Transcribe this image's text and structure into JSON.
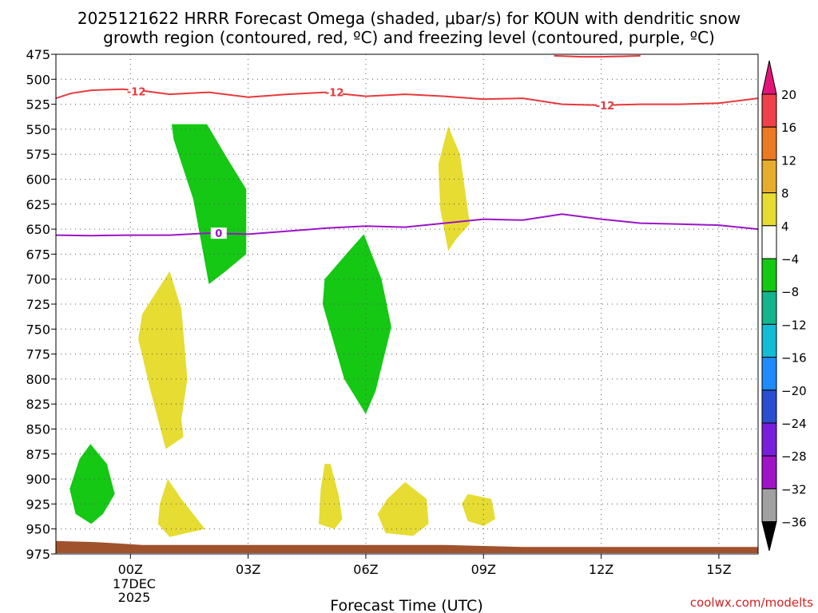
{
  "title_line1": "2025121622 HRRR Forecast Omega (shaded, μbar/s) for KOUN with dendritic snow",
  "title_line2": "growth region (contoured, red, ºC) and freezing level (contoured, purple, ºC)",
  "xlabel": "Forecast Time (UTC)",
  "watermark": "coolwx.com/modelts",
  "date_label_1": "17DEC",
  "date_label_2": "2025",
  "chart_data": {
    "type": "time-height contour",
    "x_range_hours": [
      -1.9,
      16.0
    ],
    "y_range_hPa": [
      475,
      975
    ],
    "x_ticks": [
      {
        "hour": 0,
        "label": "00Z"
      },
      {
        "hour": 3,
        "label": "03Z"
      },
      {
        "hour": 6,
        "label": "06Z"
      },
      {
        "hour": 9,
        "label": "09Z"
      },
      {
        "hour": 12,
        "label": "12Z"
      },
      {
        "hour": 15,
        "label": "15Z"
      }
    ],
    "y_ticks": [
      475,
      500,
      525,
      550,
      575,
      600,
      625,
      650,
      675,
      700,
      725,
      750,
      775,
      800,
      825,
      850,
      875,
      900,
      925,
      950,
      975
    ],
    "colorbar": {
      "labels": [
        "20",
        "16",
        "12",
        "8",
        "4",
        "−4",
        "−8",
        "−12",
        "−16",
        "−20",
        "−24",
        "−28",
        "−32",
        "−36"
      ],
      "bins": [
        {
          "range": "16 to 20",
          "color": "#f0404a"
        },
        {
          "range": "12 to 16",
          "color": "#ec7a22"
        },
        {
          "range": "8 to 12",
          "color": "#e6ac2e"
        },
        {
          "range": "4 to 8",
          "color": "#e6dc32"
        },
        {
          "range": "-4 to 4",
          "color": "#ffffff"
        },
        {
          "range": "-8 to -4",
          "color": "#14c814"
        },
        {
          "range": "-12 to -8",
          "color": "#14b48c"
        },
        {
          "range": "-16 to -12",
          "color": "#12bcd4"
        },
        {
          "range": "-20 to -16",
          "color": "#1e8cff"
        },
        {
          "range": "-24 to -20",
          "color": "#2a4ed2"
        },
        {
          "range": "-28 to -24",
          "color": "#7a1ede"
        },
        {
          "range": "-32 to -28",
          "color": "#a014c8"
        },
        {
          "range": "-36 to -32",
          "color": "#a0a0a0"
        }
      ],
      "top_color": "#e2147a",
      "bottom_color": "#000000"
    },
    "contours": [
      {
        "name": "dendritic-snow -12C",
        "label": "-12",
        "color": "#e8383c",
        "points": [
          [
            -1.9,
            519
          ],
          [
            -1.5,
            514
          ],
          [
            -1.0,
            511
          ],
          [
            -0.2,
            510
          ],
          [
            0.4,
            512
          ],
          [
            1.0,
            515
          ],
          [
            2.0,
            513
          ],
          [
            3.0,
            518
          ],
          [
            4.0,
            515
          ],
          [
            5.0,
            513
          ],
          [
            6.0,
            517
          ],
          [
            7.0,
            515
          ],
          [
            8.0,
            517
          ],
          [
            9.0,
            520
          ],
          [
            10.0,
            519
          ],
          [
            11.0,
            525
          ],
          [
            12.0,
            526
          ],
          [
            13.0,
            525
          ],
          [
            14.0,
            525
          ],
          [
            15.0,
            524
          ],
          [
            16.0,
            519
          ]
        ]
      },
      {
        "name": "dendritic-snow -12C top",
        "label": "",
        "color": "#e8383c",
        "points": [
          [
            10.8,
            476.5
          ],
          [
            11.5,
            477.5
          ],
          [
            12.0,
            477.5
          ],
          [
            12.6,
            477
          ],
          [
            13.0,
            476.5
          ]
        ]
      },
      {
        "name": "freezing-level 0C",
        "label": "0",
        "color": "#9a14c8",
        "points": [
          [
            -1.9,
            656
          ],
          [
            -1.0,
            656.5
          ],
          [
            0.0,
            656
          ],
          [
            1.0,
            656
          ],
          [
            2.0,
            654
          ],
          [
            3.0,
            655
          ],
          [
            4.0,
            652
          ],
          [
            5.0,
            649
          ],
          [
            6.0,
            647
          ],
          [
            7.0,
            648
          ],
          [
            8.0,
            644
          ],
          [
            9.0,
            640
          ],
          [
            10.0,
            641
          ],
          [
            11.0,
            635
          ],
          [
            12.0,
            640
          ],
          [
            13.0,
            644
          ],
          [
            14.0,
            645
          ],
          [
            15.0,
            646
          ],
          [
            16.0,
            650
          ]
        ]
      }
    ],
    "omega_areas": [
      {
        "value_range": "-8 to -4",
        "color": "#14c814",
        "points": [
          [
            1.05,
            545
          ],
          [
            1.95,
            545
          ],
          [
            2.45,
            578
          ],
          [
            2.95,
            610
          ],
          [
            2.95,
            675
          ],
          [
            2.4,
            693
          ],
          [
            2.0,
            705
          ],
          [
            1.6,
            620
          ],
          [
            1.1,
            560
          ]
        ]
      },
      {
        "value_range": "-8 to -4",
        "color": "#14c814",
        "points": [
          [
            5.95,
            655
          ],
          [
            6.4,
            700
          ],
          [
            6.65,
            748
          ],
          [
            6.25,
            812
          ],
          [
            6.0,
            835
          ],
          [
            5.45,
            800
          ],
          [
            4.9,
            725
          ],
          [
            4.95,
            700
          ],
          [
            5.5,
            675
          ]
        ]
      },
      {
        "value_range": "-8 to -4",
        "color": "#14c814",
        "points": [
          [
            -1.02,
            865
          ],
          [
            -0.6,
            885
          ],
          [
            -0.4,
            915
          ],
          [
            -0.7,
            935
          ],
          [
            -1.0,
            945
          ],
          [
            -1.4,
            935
          ],
          [
            -1.55,
            910
          ],
          [
            -1.3,
            880
          ]
        ]
      },
      {
        "value_range": "4 to 8",
        "color": "#e6dc32",
        "points": [
          [
            1.0,
            692
          ],
          [
            1.3,
            730
          ],
          [
            1.45,
            800
          ],
          [
            1.3,
            840
          ],
          [
            1.35,
            858
          ],
          [
            0.9,
            870
          ],
          [
            0.5,
            810
          ],
          [
            0.2,
            760
          ],
          [
            0.3,
            735
          ]
        ]
      },
      {
        "value_range": "4 to 8",
        "color": "#e6dc32",
        "points": [
          [
            8.1,
            547
          ],
          [
            8.4,
            575
          ],
          [
            8.65,
            645
          ],
          [
            8.3,
            660
          ],
          [
            8.1,
            672
          ],
          [
            7.9,
            630
          ],
          [
            7.85,
            585
          ]
        ]
      },
      {
        "value_range": "4 to 8",
        "color": "#e6dc32",
        "points": [
          [
            0.95,
            900
          ],
          [
            1.3,
            920
          ],
          [
            1.9,
            950
          ],
          [
            1.0,
            958
          ],
          [
            0.7,
            945
          ],
          [
            0.75,
            925
          ]
        ]
      },
      {
        "value_range": "4 to 8",
        "color": "#e6dc32",
        "points": [
          [
            5.1,
            885
          ],
          [
            5.3,
            915
          ],
          [
            5.4,
            940
          ],
          [
            5.2,
            950
          ],
          [
            4.8,
            945
          ],
          [
            4.85,
            910
          ],
          [
            4.95,
            885
          ]
        ]
      },
      {
        "value_range": "4 to 8",
        "color": "#e6dc32",
        "points": [
          [
            7.0,
            903
          ],
          [
            7.55,
            920
          ],
          [
            7.6,
            945
          ],
          [
            7.2,
            957
          ],
          [
            6.5,
            954
          ],
          [
            6.3,
            935
          ],
          [
            6.55,
            920
          ]
        ]
      },
      {
        "value_range": "4 to 8",
        "color": "#e6dc32",
        "points": [
          [
            8.6,
            915
          ],
          [
            9.2,
            920
          ],
          [
            9.3,
            940
          ],
          [
            9.0,
            947
          ],
          [
            8.6,
            942
          ],
          [
            8.45,
            925
          ]
        ]
      }
    ],
    "terrain": {
      "color": "#a0522d",
      "points": [
        [
          -1.9,
          962
        ],
        [
          -1.0,
          963
        ],
        [
          -0.5,
          964
        ],
        [
          0.3,
          966
        ],
        [
          2.0,
          966
        ],
        [
          4.0,
          966
        ],
        [
          6.0,
          966
        ],
        [
          8.0,
          966
        ],
        [
          9.0,
          967
        ],
        [
          10.0,
          968
        ],
        [
          12.0,
          968
        ],
        [
          14.0,
          968
        ],
        [
          16.0,
          968
        ]
      ]
    }
  }
}
